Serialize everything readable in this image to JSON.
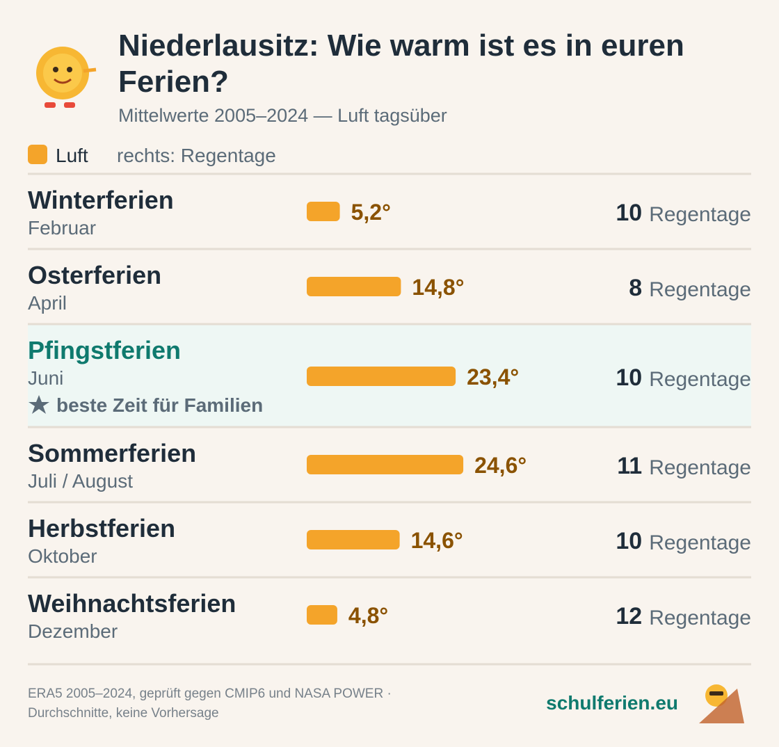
{
  "chart_data": {
    "type": "bar",
    "title": [
      "Niederlausitz: Wie warm ist es in euren",
      "Ferien?"
    ],
    "subtitle": "Mittelwerte 2005–2024 — Luft tagsüber",
    "legend_note": "rechts: Regentage",
    "categories": [
      "Winterferien",
      "Osterferien",
      "Pfingstferien",
      "Sommerferien",
      "Herbstferien",
      "Weihnachtsferien"
    ],
    "sublabels": [
      "Februar",
      "April",
      "Juni",
      "Juli / August",
      "Oktober",
      "Dezember"
    ],
    "notes": [
      null,
      null,
      "beste Zeit für Familien",
      null,
      null,
      null
    ],
    "series": [
      {
        "name": "Luft",
        "color": "#f4a42a",
        "values": [
          5.2,
          14.8,
          23.4,
          24.6,
          14.6,
          4.8
        ],
        "value_labels": [
          "5,2°",
          "14,8°",
          "23,4°",
          "24,6°",
          "14,6°",
          "4,8°"
        ]
      }
    ],
    "rain_days": [
      10,
      8,
      10,
      11,
      10,
      12
    ],
    "rain_label": "Regentage"
  },
  "footer": {
    "source": [
      "ERA5 2005–2024, geprüft gegen CMIP6 und NASA POWER ·",
      "Durchschnitte, keine Vorhersage"
    ],
    "brand": "schulferien.eu"
  }
}
